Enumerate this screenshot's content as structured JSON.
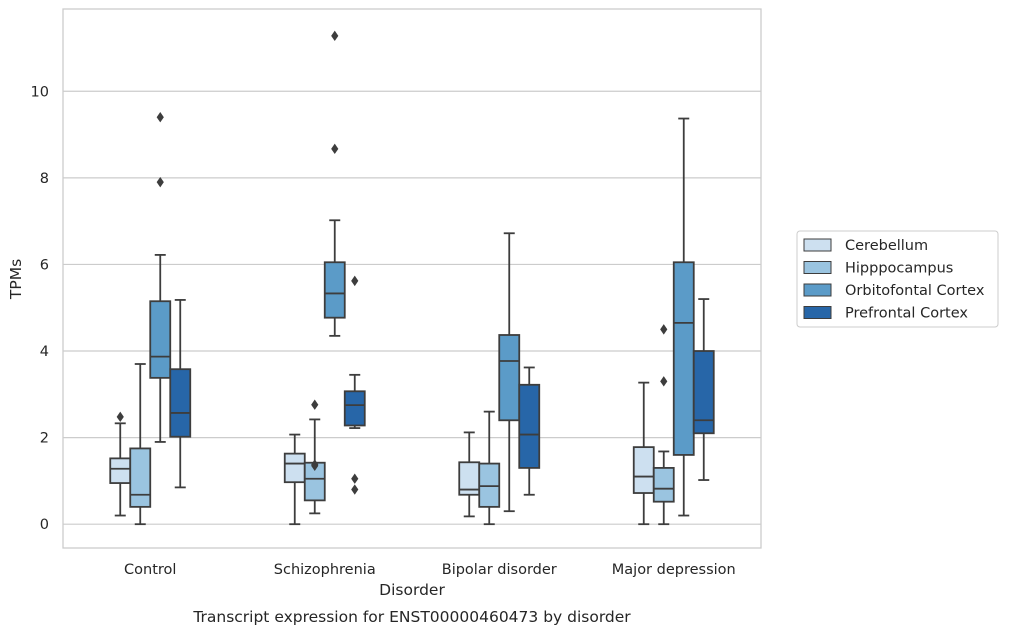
{
  "caption": "Transcript expression for ENST00000460473 by disorder",
  "chart_data": {
    "type": "box",
    "xlabel": "Disorder",
    "ylabel": "TPMs",
    "ylim": [
      -0.55,
      11.9
    ],
    "yticks": [
      0,
      2,
      4,
      6,
      8,
      10
    ],
    "grid": "horizontal",
    "legend_position": "right",
    "categories": [
      "Control",
      "Schizophrenia",
      "Bipolar disorder",
      "Major depression"
    ],
    "series": [
      {
        "name": "Cerebellum",
        "color": "#cde0f0",
        "boxes": [
          {
            "whisker_low": 0.2,
            "q1": 0.95,
            "median": 1.28,
            "q3": 1.52,
            "whisker_high": 2.33,
            "outliers": [
              2.48
            ]
          },
          {
            "whisker_low": 0.0,
            "q1": 0.97,
            "median": 1.4,
            "q3": 1.63,
            "whisker_high": 2.07,
            "outliers": []
          },
          {
            "whisker_low": 0.18,
            "q1": 0.68,
            "median": 0.8,
            "q3": 1.43,
            "whisker_high": 2.12,
            "outliers": []
          },
          {
            "whisker_low": 0.0,
            "q1": 0.72,
            "median": 1.1,
            "q3": 1.78,
            "whisker_high": 3.27,
            "outliers": []
          }
        ]
      },
      {
        "name": "Hipppocampus",
        "color": "#9ac4e0",
        "boxes": [
          {
            "whisker_low": 0.0,
            "q1": 0.4,
            "median": 0.68,
            "q3": 1.75,
            "whisker_high": 3.7,
            "outliers": []
          },
          {
            "whisker_low": 0.25,
            "q1": 0.55,
            "median": 1.05,
            "q3": 1.42,
            "whisker_high": 2.42,
            "outliers": [
              2.76,
              1.35,
              1.38
            ]
          },
          {
            "whisker_low": 0.0,
            "q1": 0.4,
            "median": 0.88,
            "q3": 1.4,
            "whisker_high": 2.6,
            "outliers": []
          },
          {
            "whisker_low": 0.0,
            "q1": 0.52,
            "median": 0.82,
            "q3": 1.3,
            "whisker_high": 1.68,
            "outliers": [
              3.3,
              4.5
            ]
          }
        ]
      },
      {
        "name": "Orbitofontal Cortex",
        "color": "#5b9bc8",
        "boxes": [
          {
            "whisker_low": 1.9,
            "q1": 3.38,
            "median": 3.87,
            "q3": 5.15,
            "whisker_high": 6.22,
            "outliers": [
              7.9,
              9.4
            ]
          },
          {
            "whisker_low": 4.35,
            "q1": 4.77,
            "median": 5.33,
            "q3": 6.05,
            "whisker_high": 7.02,
            "outliers": [
              8.67,
              11.28
            ]
          },
          {
            "whisker_low": 0.3,
            "q1": 2.4,
            "median": 3.77,
            "q3": 4.37,
            "whisker_high": 6.72,
            "outliers": []
          },
          {
            "whisker_low": 0.2,
            "q1": 1.6,
            "median": 4.65,
            "q3": 6.05,
            "whisker_high": 9.37,
            "outliers": []
          }
        ]
      },
      {
        "name": "Prefrontal Cortex",
        "color": "#2766a8",
        "boxes": [
          {
            "whisker_low": 0.85,
            "q1": 2.02,
            "median": 2.57,
            "q3": 3.58,
            "whisker_high": 5.18,
            "outliers": []
          },
          {
            "whisker_low": 2.22,
            "q1": 2.28,
            "median": 2.75,
            "q3": 3.07,
            "whisker_high": 3.45,
            "outliers": [
              5.62,
              1.05,
              0.8
            ]
          },
          {
            "whisker_low": 0.68,
            "q1": 1.3,
            "median": 2.07,
            "q3": 3.22,
            "whisker_high": 3.62,
            "outliers": []
          },
          {
            "whisker_low": 1.02,
            "q1": 2.1,
            "median": 2.4,
            "q3": 4.0,
            "whisker_high": 5.2,
            "outliers": []
          }
        ]
      }
    ]
  }
}
